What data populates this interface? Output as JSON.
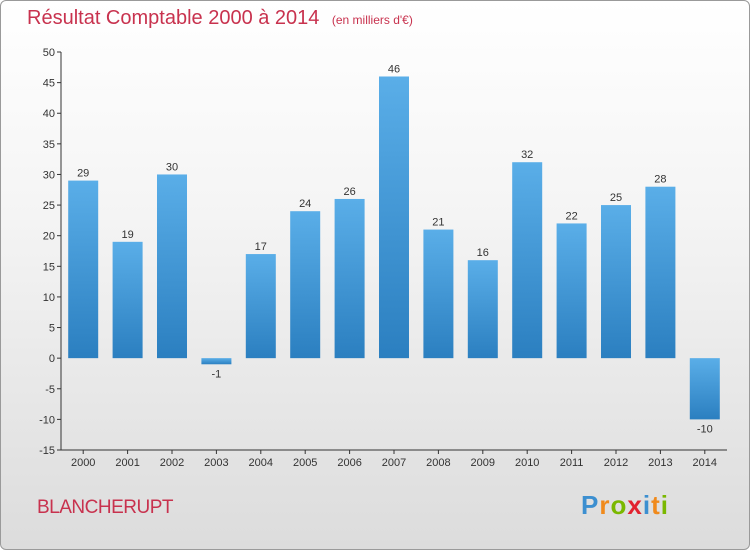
{
  "chart_data": {
    "type": "bar",
    "title": "Résultat Comptable 2000 à 2014",
    "subtitle": "(en milliers d'€)",
    "categories": [
      "2000",
      "2001",
      "2002",
      "2003",
      "2004",
      "2005",
      "2006",
      "2007",
      "2008",
      "2009",
      "2010",
      "2011",
      "2012",
      "2013",
      "2014"
    ],
    "values": [
      29,
      19,
      30,
      -1,
      17,
      24,
      26,
      46,
      21,
      16,
      32,
      22,
      25,
      28,
      -10
    ],
    "data_labels": [
      "29",
      "19",
      "30",
      "-1",
      "17",
      "24",
      "26",
      "46",
      "21",
      "16",
      "32",
      "22",
      "25",
      "28",
      "-10"
    ],
    "xlabel": "",
    "ylabel": "",
    "ylim": [
      -15,
      50
    ],
    "yticks": [
      -15,
      -10,
      -5,
      0,
      5,
      10,
      15,
      20,
      25,
      30,
      35,
      40,
      45,
      50
    ],
    "ytick_labels": [
      "-15",
      "-10",
      "-5",
      "0",
      "5",
      "10",
      "15",
      "20",
      "25",
      "30",
      "35",
      "40",
      "45",
      "50"
    ],
    "grid": false,
    "bar_color_light": "#5aaee8",
    "bar_color_dark": "#2b7fc0"
  },
  "commune": "BLANCHERUPT",
  "logo": {
    "letters": [
      "P",
      "r",
      "o",
      "x",
      "i",
      "t",
      "i"
    ],
    "colors": [
      "#3c8fd0",
      "#f08a1c",
      "#7ab800",
      "#e2222f",
      "#3c8fd0",
      "#f08a1c",
      "#7ab800"
    ]
  },
  "colors": {
    "title": "#c8324e",
    "axis": "#333333"
  }
}
